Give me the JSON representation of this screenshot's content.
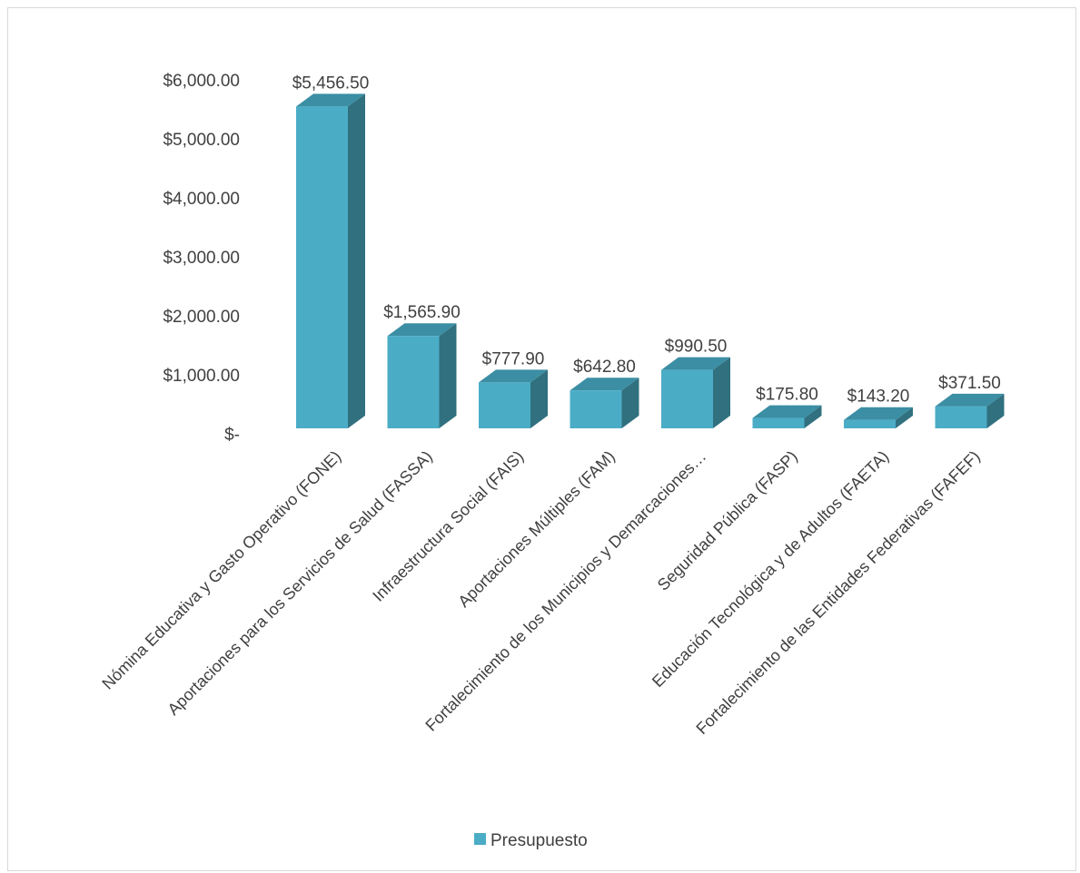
{
  "chart_data": {
    "type": "bar",
    "style": "3d-column",
    "categories": [
      "Nómina Educativa y Gasto Operativo (FONE)",
      "Aportaciones para los Servicios de Salud (FASSA)",
      "Infraestructura Social (FAIS)",
      "Aportaciones Múltiples (FAM)",
      "Fortalecimiento de los Municipios y Demarcaciones…",
      "Seguridad Pública (FASP)",
      "Educación Tecnológica y de Adultos (FAETA)",
      "Fortalecimiento de las Entidades Federativas (FAFEF)"
    ],
    "series": [
      {
        "name": "Presupuesto",
        "values": [
          5456.5,
          1565.9,
          777.9,
          642.8,
          990.5,
          175.8,
          143.2,
          371.5
        ],
        "value_labels": [
          "$5,456.50",
          "$1,565.90",
          "$777.90",
          "$642.80",
          "$990.50",
          "$175.80",
          "$143.20",
          "$371.50"
        ]
      }
    ],
    "y_ticks": [
      "$-",
      "$1,000.00",
      "$2,000.00",
      "$3,000.00",
      "$4,000.00",
      "$5,000.00",
      "$6,000.00"
    ],
    "ylim": [
      0,
      6000
    ],
    "grid": false,
    "legend": "bottom",
    "colors": {
      "front": "#4bacc6",
      "side": "#31707f",
      "top": "#3b8ea4"
    }
  }
}
